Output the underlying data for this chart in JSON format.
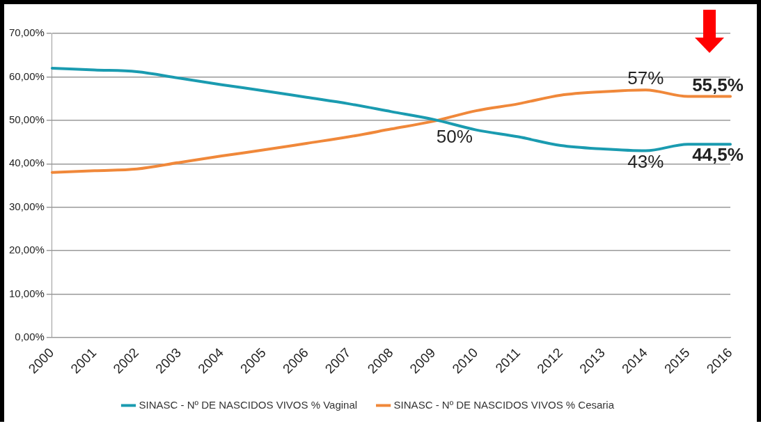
{
  "chart_data": {
    "type": "line",
    "categories": [
      "2000",
      "2001",
      "2002",
      "2003",
      "2004",
      "2005",
      "2006",
      "2007",
      "2008",
      "2009",
      "2010",
      "2011",
      "2012",
      "2013",
      "2014",
      "2015",
      "2016"
    ],
    "series": [
      {
        "name": "SINASC - Nº DE NASCIDOS VIVOS % Vaginal",
        "color": "#1a9bb0",
        "values": [
          62,
          61.6,
          61.2,
          59.7,
          58.2,
          56.8,
          55.3,
          53.8,
          52,
          50.2,
          47.8,
          46.2,
          44.2,
          43.4,
          43,
          44.5,
          44.5
        ]
      },
      {
        "name": "SINASC - Nº DE NASCIDOS VIVOS % Cesaria",
        "color": "#f0883a",
        "values": [
          38,
          38.4,
          38.8,
          40.3,
          41.8,
          43.2,
          44.7,
          46.2,
          48,
          49.8,
          52.2,
          53.8,
          55.8,
          56.6,
          57,
          55.5,
          55.5
        ]
      }
    ],
    "ylim": [
      0,
      70
    ],
    "yticks": [
      {
        "value": 0,
        "label": "0,00%"
      },
      {
        "value": 10,
        "label": "10,00%"
      },
      {
        "value": 20,
        "label": "20,00%"
      },
      {
        "value": 30,
        "label": "30,00%"
      },
      {
        "value": 40,
        "label": "40,00%"
      },
      {
        "value": 50,
        "label": "50,00%"
      },
      {
        "value": 60,
        "label": "60,00%"
      },
      {
        "value": 70,
        "label": "70,00%"
      }
    ],
    "grid": "y",
    "legend": "bottom",
    "marker": "none",
    "line_style": "solid",
    "annotations": [
      {
        "text": "50%",
        "x": "2009",
        "y": 50
      },
      {
        "text": "57%",
        "x": "2014",
        "y": 57
      },
      {
        "text": "43%",
        "x": "2014",
        "y": 43
      },
      {
        "text": "55,5%",
        "x": "2016",
        "y": 55.5
      },
      {
        "text": "44,5%",
        "x": "2016",
        "y": 44.5
      }
    ]
  }
}
